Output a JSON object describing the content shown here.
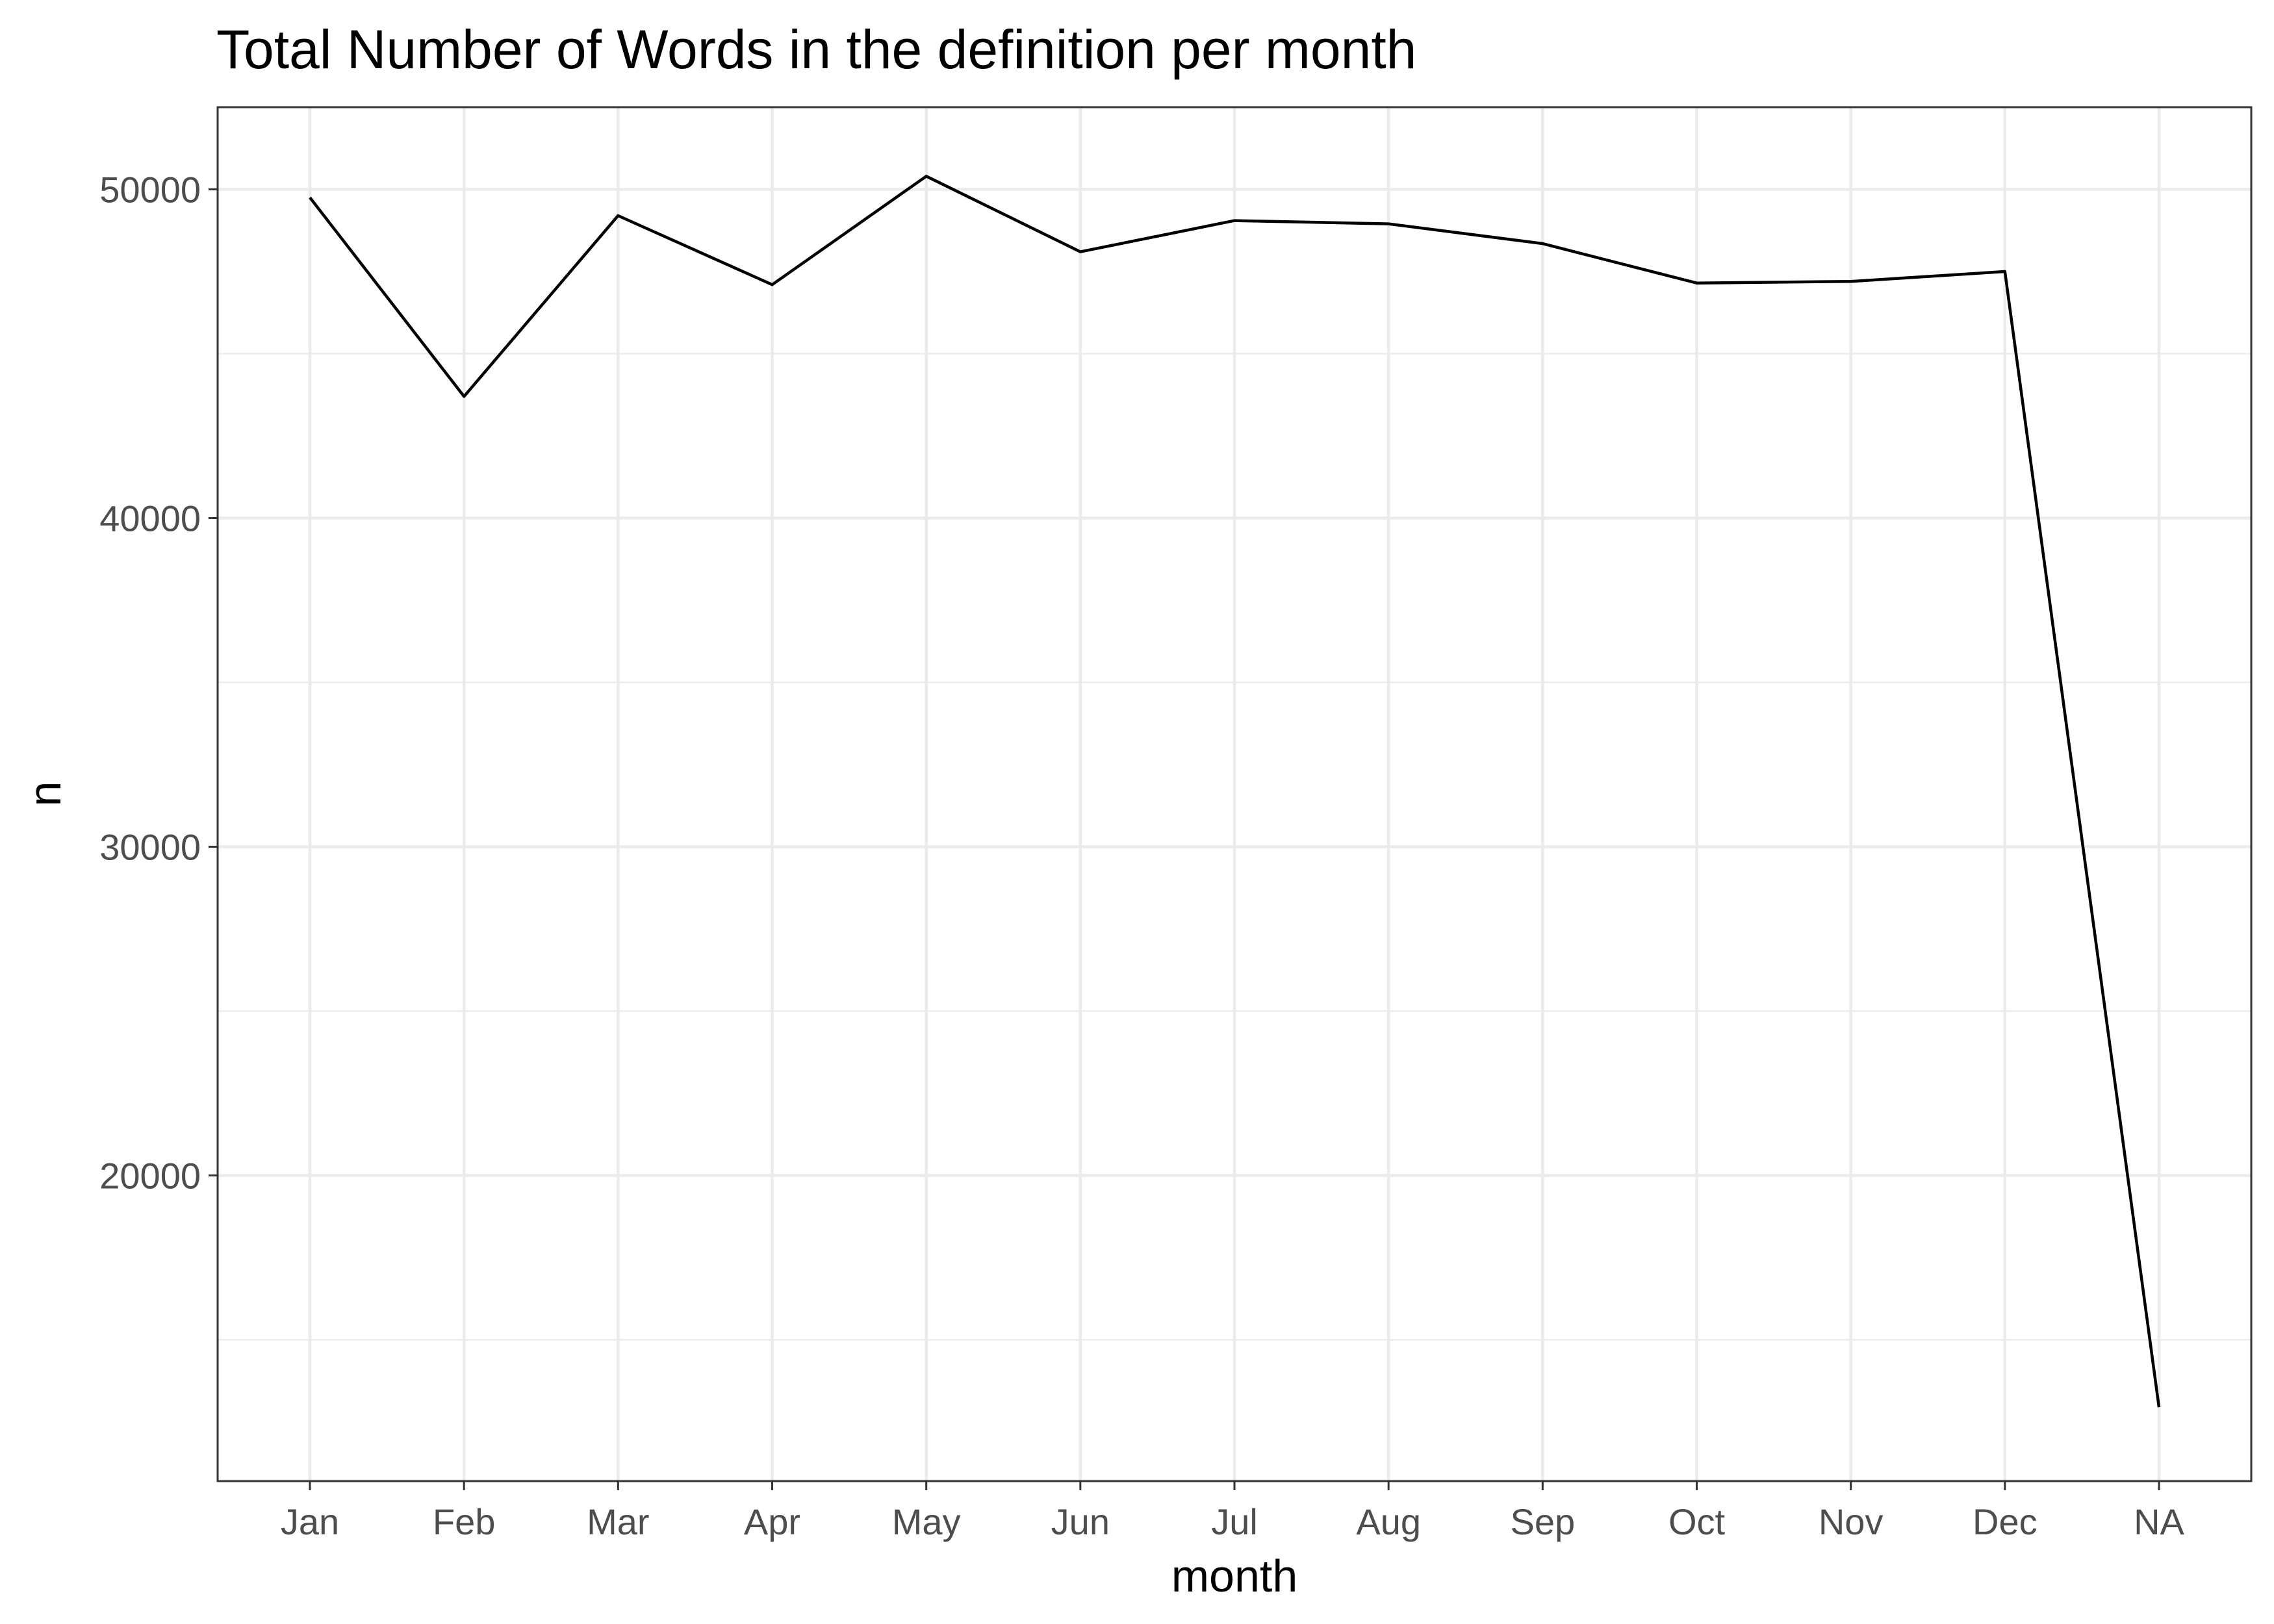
{
  "chart_data": {
    "type": "line",
    "title": "Total Number of Words in the definition per month",
    "xlabel": "month",
    "ylabel": "n",
    "categories": [
      "Jan",
      "Feb",
      "Mar",
      "Apr",
      "May",
      "Jun",
      "Jul",
      "Aug",
      "Sep",
      "Oct",
      "Nov",
      "Dec",
      "NA"
    ],
    "values": [
      49750,
      43700,
      49200,
      47100,
      50400,
      48100,
      49050,
      48950,
      48350,
      47150,
      47200,
      47500,
      12950
    ],
    "yticks": [
      20000,
      30000,
      40000,
      50000
    ],
    "ytick_labels": [
      "20000",
      "30000",
      "40000",
      "50000"
    ],
    "ylim": [
      10700,
      52500
    ],
    "grid": true,
    "line_color": "#000000"
  }
}
